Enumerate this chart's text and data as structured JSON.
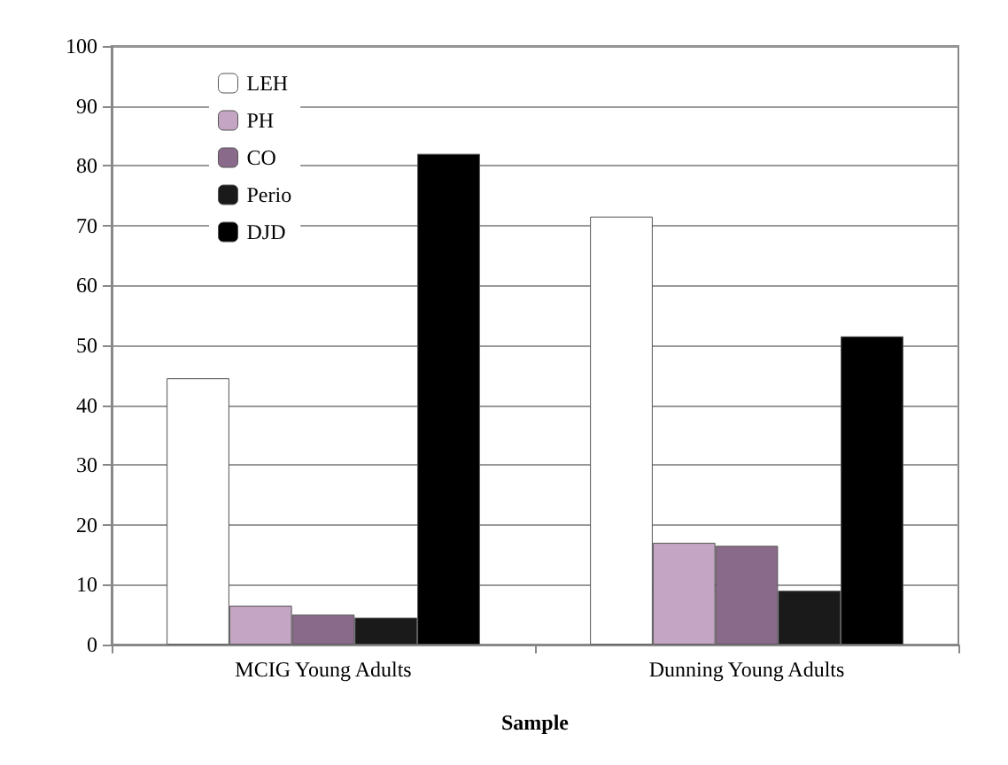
{
  "chart_data": {
    "type": "bar",
    "xlabel": "Sample",
    "categories": [
      "MCIG Young Adults",
      "Dunning Young Adults"
    ],
    "series": [
      {
        "name": "LEH",
        "color": "#ffffff",
        "values": [
          44.5,
          71.5
        ]
      },
      {
        "name": "PH",
        "color": "#c4a6c4",
        "values": [
          6.5,
          17
        ]
      },
      {
        "name": "CO",
        "color": "#8a6a8a",
        "values": [
          5,
          16.5
        ]
      },
      {
        "name": "Perio",
        "color": "#1a1a1a",
        "values": [
          4.5,
          9
        ]
      },
      {
        "name": "DJD",
        "color": "#000000",
        "values": [
          82,
          51.5
        ]
      }
    ],
    "ylim": [
      0,
      100
    ],
    "yticks": [
      0,
      10,
      20,
      30,
      40,
      50,
      60,
      70,
      80,
      90,
      100
    ],
    "grid": "y",
    "legend": "top left"
  }
}
